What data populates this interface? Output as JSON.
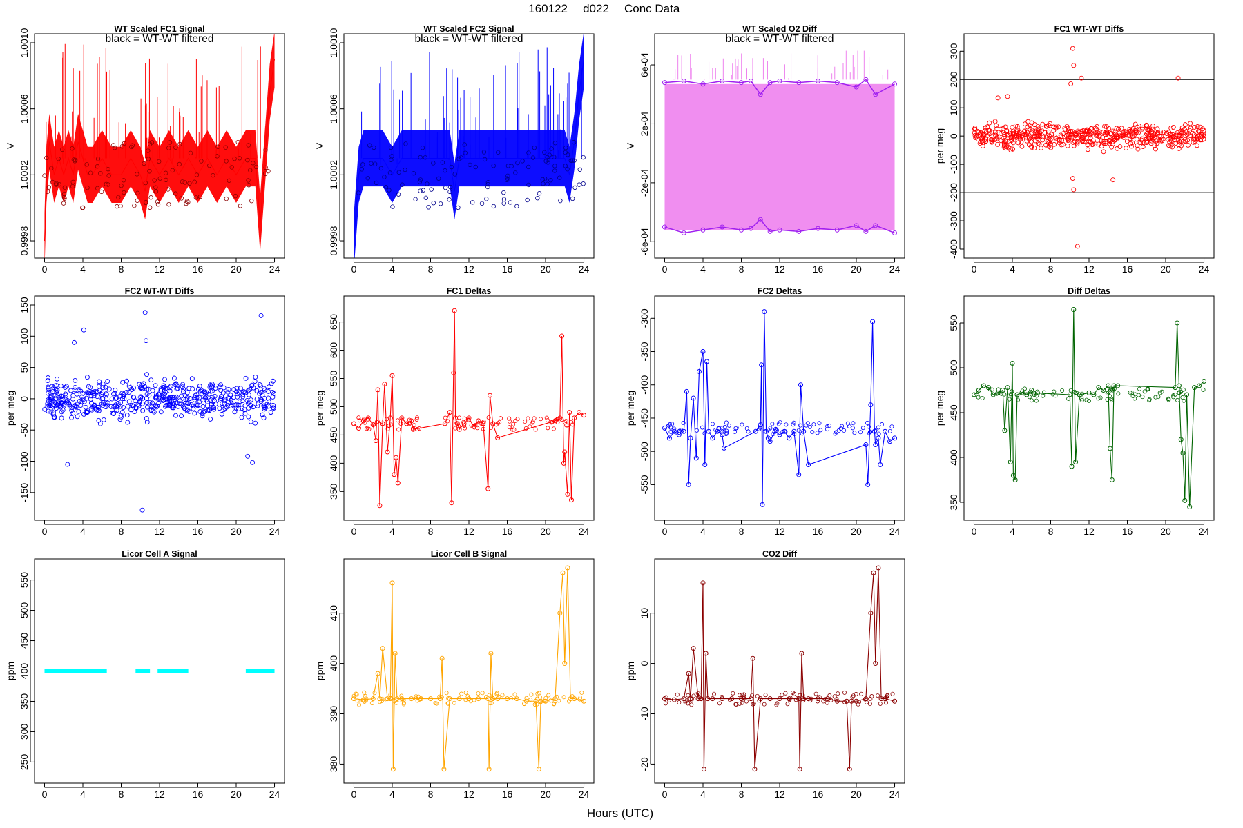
{
  "figure": {
    "title_parts": [
      "160122",
      "d022",
      "Conc Data"
    ],
    "xlabel": "Hours (UTC)"
  },
  "chart_data": [
    {
      "id": "p1",
      "type": "line",
      "title": "WT Scaled FC1 Signal",
      "annotation": "black = WT-WT filtered",
      "ylabel": "V",
      "xlim": [
        0,
        24
      ],
      "ylim": [
        0.99975,
        1.001
      ],
      "xticks": [
        "0",
        "4",
        "8",
        "12",
        "16",
        "20",
        "24"
      ],
      "yticks": [
        "0.9998",
        "1.0002",
        "1.0006",
        "1.0010"
      ],
      "color": "#ff0000",
      "series": [
        {
          "name": "signal",
          "x": [
            0,
            0.2,
            0.5,
            1,
            1.5,
            2,
            2.5,
            3,
            3.5,
            4,
            4.5,
            5,
            6,
            7,
            8,
            9,
            10,
            10.5,
            11,
            12,
            13,
            14,
            15,
            16,
            17,
            18,
            19,
            20,
            21,
            22,
            22.5,
            23,
            23.5,
            24
          ],
          "y": [
            0.9998,
            1.0002,
            1.0004,
            1.0002,
            1.0003,
            1.0002,
            1.0003,
            1.0002,
            1.0004,
            1.0003,
            1.0002,
            1.0002,
            1.0003,
            1.0002,
            1.0002,
            1.0003,
            1.0002,
            1.0001,
            1.0003,
            1.0002,
            1.0003,
            1.0002,
            1.0003,
            1.0002,
            1.0003,
            1.0002,
            1.0003,
            1.0002,
            1.0003,
            1.0003,
            0.9999,
            1.0003,
            1.0007,
            1.0009
          ]
        }
      ]
    },
    {
      "id": "p2",
      "type": "line",
      "title": "WT Scaled FC2 Signal",
      "annotation": "black = WT-WT filtered",
      "ylabel": "V",
      "xlim": [
        0,
        24
      ],
      "ylim": [
        0.99975,
        1.001
      ],
      "xticks": [
        "0",
        "4",
        "8",
        "12",
        "16",
        "20",
        "24"
      ],
      "yticks": [
        "0.9998",
        "1.0002",
        "1.0006",
        "1.0010"
      ],
      "color": "#0000ff",
      "series": [
        {
          "name": "signal",
          "x": [
            0,
            0.5,
            1,
            2,
            3,
            4,
            5,
            6,
            7,
            8,
            9,
            10,
            10.5,
            11,
            12,
            13,
            14,
            15,
            16,
            17,
            18,
            19,
            20,
            21,
            22,
            22.5,
            23,
            23.5,
            24
          ],
          "y": [
            0.9998,
            1.0002,
            1.0003,
            1.0003,
            1.0003,
            1.0002,
            1.0003,
            1.0003,
            1.0003,
            1.0003,
            1.0003,
            1.0003,
            1.0001,
            1.0003,
            1.0003,
            1.0003,
            1.0003,
            1.0003,
            1.0003,
            1.0003,
            1.0003,
            1.0003,
            1.0003,
            1.0003,
            1.0003,
            1.0002,
            1.0004,
            1.0007,
            1.0009
          ]
        }
      ]
    },
    {
      "id": "p3",
      "type": "line",
      "title": "WT Scaled O2 Diff",
      "annotation": "black = WT-WT filtered",
      "ylabel": "V",
      "xlim": [
        0,
        24
      ],
      "ylim": [
        -0.00065,
        0.00075
      ],
      "xticks": [
        "0",
        "4",
        "8",
        "12",
        "16",
        "20",
        "24"
      ],
      "yticks": [
        "-6e-04",
        "-2e-04",
        "2e-04",
        "6e-04"
      ],
      "color": "#ee82ee",
      "series": [
        {
          "name": "upper",
          "x": [
            0,
            2,
            4,
            6,
            8,
            9,
            10,
            11,
            12,
            14,
            16,
            18,
            20,
            21,
            22,
            24
          ],
          "y": [
            0.00048,
            0.00049,
            0.00047,
            0.00049,
            0.00048,
            0.00049,
            0.0004,
            0.00048,
            0.00049,
            0.00048,
            0.00049,
            0.00048,
            0.00045,
            0.0005,
            0.0004,
            0.00047
          ]
        },
        {
          "name": "lower",
          "x": [
            0,
            2,
            4,
            6,
            8,
            9,
            10,
            11,
            12,
            14,
            16,
            18,
            20,
            21,
            22,
            24
          ],
          "y": [
            -0.0005,
            -0.00054,
            -0.00052,
            -0.0005,
            -0.00052,
            -0.00051,
            -0.00045,
            -0.00053,
            -0.00052,
            -0.00053,
            -0.00051,
            -0.00052,
            -0.00049,
            -0.00053,
            -0.00049,
            -0.00054
          ]
        }
      ]
    },
    {
      "id": "p4",
      "type": "scatter",
      "title": "FC1 WT-WT Diffs",
      "ylabel": "per meg",
      "xlim": [
        0,
        24
      ],
      "ylim": [
        -400,
        330
      ],
      "xticks": [
        "0",
        "4",
        "8",
        "12",
        "16",
        "20",
        "24"
      ],
      "yticks": [
        "-400",
        "-300",
        "-200",
        "-100",
        "0",
        "100",
        "200",
        "300"
      ],
      "hlines": [
        200,
        -200
      ],
      "color": "#ff0000",
      "spread": 38,
      "outliers": {
        "x": [
          10.3,
          10.4,
          10.8,
          11.2,
          10.1,
          10.3,
          10.4,
          14.5,
          21.3,
          3.5,
          2.5
        ],
        "y": [
          310,
          250,
          -390,
          205,
          185,
          -150,
          -190,
          -155,
          205,
          140,
          135
        ]
      }
    },
    {
      "id": "p5",
      "type": "scatter",
      "title": "FC2 WT-WT Diffs",
      "ylabel": "per meg",
      "xlim": [
        0,
        24
      ],
      "ylim": [
        -180,
        150
      ],
      "xticks": [
        "0",
        "4",
        "8",
        "12",
        "16",
        "20",
        "24"
      ],
      "yticks": [
        "-150",
        "-100",
        "-50",
        "0",
        "50",
        "100",
        "150"
      ],
      "color": "#0000ff",
      "spread": 28,
      "outliers": {
        "x": [
          10.5,
          10.2,
          22.6,
          2.4,
          4.1,
          10.6,
          3.1,
          21.7,
          21.2
        ],
        "y": [
          138,
          -178,
          133,
          -105,
          110,
          93,
          90,
          -102,
          -92
        ]
      }
    },
    {
      "id": "p6",
      "type": "line",
      "title": "FC1 Deltas",
      "ylabel": "per meg",
      "xlim": [
        0,
        24
      ],
      "ylim": [
        315,
        680
      ],
      "xticks": [
        "0",
        "4",
        "8",
        "12",
        "16",
        "20",
        "24"
      ],
      "yticks": [
        "350",
        "400",
        "450",
        "500",
        "550",
        "600",
        "650"
      ],
      "color": "#ff0000",
      "series": [
        {
          "name": "deltas",
          "x": [
            0,
            0.5,
            1,
            1.5,
            2,
            2.3,
            2.5,
            2.7,
            3,
            3.2,
            3.5,
            3.8,
            4,
            4.2,
            4.4,
            4.6,
            5,
            5.5,
            6,
            6.2,
            9.5,
            10,
            10.2,
            10.4,
            10.5,
            10.6,
            10.8,
            11,
            11.5,
            12,
            12.5,
            13,
            13.5,
            14,
            14.2,
            14.5,
            15,
            21,
            21.5,
            21.7,
            21.9,
            22,
            22.3,
            22.5,
            22.7,
            23,
            23.5,
            24
          ],
          "y": [
            470,
            462,
            475,
            480,
            468,
            440,
            530,
            325,
            470,
            540,
            420,
            480,
            555,
            380,
            410,
            365,
            480,
            470,
            475,
            460,
            470,
            490,
            330,
            560,
            670,
            480,
            470,
            460,
            470,
            480,
            465,
            475,
            470,
            355,
            520,
            470,
            445,
            475,
            480,
            625,
            400,
            420,
            345,
            490,
            335,
            480,
            490,
            485
          ]
        }
      ]
    },
    {
      "id": "p7",
      "type": "line",
      "title": "FC2 Deltas",
      "ylabel": "per meg",
      "xlim": [
        0,
        24
      ],
      "ylim": [
        -590,
        -280
      ],
      "xticks": [
        "0",
        "4",
        "8",
        "12",
        "16",
        "20",
        "24"
      ],
      "yticks": [
        "-550",
        "-500",
        "-450",
        "-400",
        "-350",
        "-300"
      ],
      "color": "#0000ff",
      "series": [
        {
          "name": "deltas",
          "x": [
            0,
            0.5,
            1,
            1.5,
            2,
            2.3,
            2.5,
            2.7,
            3,
            3.3,
            3.6,
            4,
            4.2,
            4.4,
            4.6,
            5,
            5.5,
            6,
            6.2,
            9.5,
            10,
            10.1,
            10.2,
            10.4,
            10.6,
            10.8,
            11,
            11.5,
            12,
            12.5,
            13,
            13.5,
            14,
            14.2,
            14.5,
            15,
            21,
            21.2,
            21.5,
            21.7,
            21.9,
            22,
            22.3,
            22.5,
            23,
            23.5,
            24
          ],
          "y": [
            -465,
            -480,
            -470,
            -475,
            -470,
            -410,
            -550,
            -480,
            -420,
            -510,
            -380,
            -350,
            -520,
            -365,
            -470,
            -480,
            -470,
            -475,
            -495,
            -470,
            -460,
            -370,
            -580,
            -290,
            -470,
            -480,
            -485,
            -470,
            -475,
            -470,
            -480,
            -470,
            -535,
            -400,
            -470,
            -520,
            -490,
            -550,
            -430,
            -305,
            -470,
            -490,
            -480,
            -520,
            -470,
            -485,
            -480
          ]
        }
      ]
    },
    {
      "id": "p8",
      "type": "line",
      "title": "Diff Deltas",
      "ylabel": "per meg",
      "xlim": [
        0,
        24
      ],
      "ylim": [
        340,
        570
      ],
      "xticks": [
        "0",
        "4",
        "8",
        "12",
        "16",
        "20",
        "24"
      ],
      "yticks": [
        "350",
        "400",
        "450",
        "500",
        "550"
      ],
      "color": "#006400",
      "series": [
        {
          "name": "deltas",
          "x": [
            0,
            0.5,
            1,
            1.5,
            2,
            2.5,
            3,
            3.2,
            3.5,
            3.8,
            4,
            4.1,
            4.3,
            4.5,
            5,
            5.5,
            6,
            6.2,
            10,
            10.2,
            10.4,
            10.6,
            11,
            12,
            12.5,
            13,
            13.5,
            14,
            14.2,
            14.4,
            14.6,
            15,
            21,
            21.2,
            21.4,
            21.6,
            21.8,
            22,
            22.2,
            22.5,
            23,
            23.5,
            24
          ],
          "y": [
            470,
            475,
            480,
            478,
            470,
            472,
            475,
            430,
            478,
            395,
            505,
            380,
            375,
            470,
            472,
            470,
            475,
            472,
            470,
            390,
            565,
            395,
            470,
            472,
            470,
            478,
            475,
            480,
            410,
            375,
            480,
            480,
            478,
            550,
            480,
            420,
            405,
            352,
            470,
            345,
            478,
            480,
            485
          ]
        }
      ]
    },
    {
      "id": "p9",
      "type": "line",
      "title": "Licor Cell A Signal",
      "ylabel": "ppm",
      "xlim": [
        0,
        24
      ],
      "ylim": [
        230,
        570
      ],
      "xticks": [
        "0",
        "4",
        "8",
        "12",
        "16",
        "20",
        "24"
      ],
      "yticks": [
        "250",
        "300",
        "350",
        "400",
        "450",
        "500",
        "550"
      ],
      "color": "#00ffff",
      "series": [
        {
          "name": "signal",
          "x": [
            0,
            6.5,
            9.5,
            11,
            11.8,
            15,
            21,
            24
          ],
          "y": [
            400,
            400,
            400,
            400,
            400,
            400,
            400,
            400
          ]
        }
      ]
    },
    {
      "id": "p10",
      "type": "line",
      "title": "Licor Cell B Signal",
      "ylabel": "ppm",
      "xlim": [
        0,
        24
      ],
      "ylim": [
        378,
        419
      ],
      "xticks": [
        "0",
        "4",
        "8",
        "12",
        "16",
        "20",
        "24"
      ],
      "yticks": [
        "380",
        "390",
        "400",
        "410"
      ],
      "color": "#ffa500",
      "series": [
        {
          "name": "signal",
          "x": [
            0,
            1,
            2,
            2.5,
            2.7,
            3,
            3.5,
            3.8,
            4,
            4.1,
            4.3,
            4.5,
            5,
            6,
            7,
            8,
            9,
            9.2,
            9.4,
            10,
            11,
            12,
            13,
            14,
            14.1,
            14.3,
            14.5,
            15,
            16,
            17,
            18,
            19,
            19.3,
            19.5,
            20,
            21,
            21.5,
            21.8,
            22,
            22.3,
            22.6,
            23,
            24
          ],
          "y": [
            393,
            392.8,
            393,
            398,
            393,
            403,
            393,
            393,
            416,
            379,
            402,
            393,
            393,
            393,
            393,
            393,
            393,
            401,
            379,
            393,
            393,
            393,
            393,
            393,
            379,
            402,
            393,
            393,
            393,
            393,
            392.5,
            392.5,
            379,
            392.5,
            392.5,
            393,
            410,
            418,
            400,
            419,
            393,
            393,
            392.5
          ]
        }
      ]
    },
    {
      "id": "p11",
      "type": "line",
      "title": "CO2 Diff",
      "ylabel": "ppm",
      "xlim": [
        0,
        24
      ],
      "ylim": [
        -22,
        19
      ],
      "xticks": [
        "0",
        "4",
        "8",
        "12",
        "16",
        "20",
        "24"
      ],
      "yticks": [
        "-20",
        "-10",
        "0",
        "10"
      ],
      "color": "#8b0000",
      "series": [
        {
          "name": "diff",
          "x": [
            0,
            1,
            2,
            2.5,
            2.7,
            3,
            3.5,
            3.8,
            4,
            4.1,
            4.3,
            4.5,
            5,
            6,
            7,
            8,
            9,
            9.2,
            9.4,
            10,
            11,
            12,
            13,
            14,
            14.1,
            14.3,
            14.5,
            15,
            16,
            17,
            18,
            19,
            19.3,
            19.5,
            20,
            21,
            21.5,
            21.8,
            22,
            22.3,
            22.6,
            23,
            24
          ],
          "y": [
            -7,
            -7.2,
            -7,
            -2,
            -7,
            3,
            -7,
            -7,
            16,
            -21,
            2,
            -7,
            -7,
            -7,
            -7,
            -7,
            -7,
            1,
            -21,
            -7,
            -7,
            -7,
            -7,
            -7,
            -21,
            2,
            -7,
            -7,
            -7,
            -7,
            -7.5,
            -7.5,
            -21,
            -7.5,
            -7.5,
            -7,
            10,
            18,
            0,
            19,
            -7,
            -7,
            -7.5
          ]
        }
      ]
    }
  ]
}
